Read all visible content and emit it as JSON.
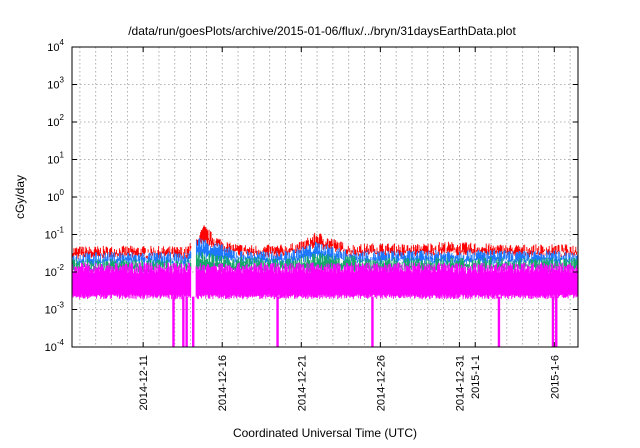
{
  "chart_data": {
    "type": "line",
    "title": "/data/run/goesPlots/archive/2015-01-06/flux/../bryn/31daysEarthData.plot",
    "xlabel": "Coordinated Universal Time (UTC)",
    "ylabel": "cGy/day",
    "y_scale": "log",
    "ylim": [
      0.0001,
      10000
    ],
    "y_ticks": [
      {
        "base": "10",
        "exp": "-4",
        "value": 0.0001
      },
      {
        "base": "10",
        "exp": "-3",
        "value": 0.001
      },
      {
        "base": "10",
        "exp": "-2",
        "value": 0.01
      },
      {
        "base": "10",
        "exp": "-1",
        "value": 0.1
      },
      {
        "base": "10",
        "exp": "0",
        "value": 1
      },
      {
        "base": "10",
        "exp": "1",
        "value": 10
      },
      {
        "base": "10",
        "exp": "2",
        "value": 100
      },
      {
        "base": "10",
        "exp": "3",
        "value": 1000
      },
      {
        "base": "10",
        "exp": "4",
        "value": 10000
      }
    ],
    "xlim": [
      "2014-12-06T12:00",
      "2015-01-07T12:00"
    ],
    "x_ticks": [
      {
        "label": "2014-12-11",
        "date": "2014-12-11"
      },
      {
        "label": "2014-12-16",
        "date": "2014-12-16"
      },
      {
        "label": "2014-12-21",
        "date": "2014-12-21"
      },
      {
        "label": "2014-12-26",
        "date": "2014-12-26"
      },
      {
        "label": "2014-12-31",
        "date": "2014-12-31"
      },
      {
        "label": "2015-1-1",
        "date": "2015-01-01"
      },
      {
        "label": "2015-1-6",
        "date": "2015-01-06"
      }
    ],
    "grid": true,
    "legend": "none",
    "series": [
      {
        "color": "#ff0000",
        "values_description": "top band",
        "points": [
          [
            "2014-12-06T12:00",
            0.045
          ],
          [
            "2014-12-08",
            0.045
          ],
          [
            "2014-12-10",
            0.046
          ],
          [
            "2014-12-12",
            0.045
          ],
          [
            "2014-12-13T18:00",
            0.044
          ],
          [
            "2014-12-14T12:00",
            0.09
          ],
          [
            "2014-12-14T20:00",
            0.17
          ],
          [
            "2014-12-15T12:00",
            0.09
          ],
          [
            "2014-12-16T12:00",
            0.055
          ],
          [
            "2014-12-18",
            0.048
          ],
          [
            "2014-12-20",
            0.05
          ],
          [
            "2014-12-21",
            0.06
          ],
          [
            "2014-12-22",
            0.11
          ],
          [
            "2014-12-22T18:00",
            0.08
          ],
          [
            "2014-12-24",
            0.05
          ],
          [
            "2014-12-26",
            0.055
          ],
          [
            "2014-12-28",
            0.05
          ],
          [
            "2014-12-30",
            0.06
          ],
          [
            "2015-01-01",
            0.055
          ],
          [
            "2015-01-03",
            0.05
          ],
          [
            "2015-01-05",
            0.05
          ],
          [
            "2015-01-07T12:00",
            0.05
          ]
        ]
      },
      {
        "color": "#1e78ff",
        "values_description": "upper-middle band",
        "points": [
          [
            "2014-12-06T12:00",
            0.03
          ],
          [
            "2014-12-10",
            0.032
          ],
          [
            "2014-12-13T18:00",
            0.03
          ],
          [
            "2014-12-14T12:00",
            0.08
          ],
          [
            "2014-12-15T12:00",
            0.06
          ],
          [
            "2014-12-17",
            0.035
          ],
          [
            "2014-12-20",
            0.033
          ],
          [
            "2014-12-22",
            0.06
          ],
          [
            "2014-12-24",
            0.035
          ],
          [
            "2014-12-28",
            0.035
          ],
          [
            "2015-01-01",
            0.037
          ],
          [
            "2015-01-04",
            0.034
          ],
          [
            "2015-01-07T12:00",
            0.035
          ]
        ]
      },
      {
        "color": "#16a86a",
        "values_description": "middle band",
        "points": [
          [
            "2014-12-06T12:00",
            0.02
          ],
          [
            "2014-12-10",
            0.021
          ],
          [
            "2014-12-13T18:00",
            0.02
          ],
          [
            "2014-12-14T12:00",
            0.035
          ],
          [
            "2014-12-16",
            0.025
          ],
          [
            "2014-12-20",
            0.021
          ],
          [
            "2014-12-22",
            0.03
          ],
          [
            "2014-12-26",
            0.022
          ],
          [
            "2015-01-01",
            0.023
          ],
          [
            "2015-01-07T12:00",
            0.022
          ]
        ]
      },
      {
        "color": "#ff00ff",
        "values_description": "bottom band",
        "upper": 0.015,
        "lower": 0.0022,
        "dips": [
          "2014-12-12T22:00",
          "2014-12-13T13:00",
          "2014-12-13T18:00",
          "2014-12-14T04:00",
          "2014-12-19T12:00",
          "2014-12-25T12:00",
          "2015-01-02T12:00",
          "2015-01-05T22:00",
          "2015-01-06T03:00"
        ]
      }
    ]
  }
}
